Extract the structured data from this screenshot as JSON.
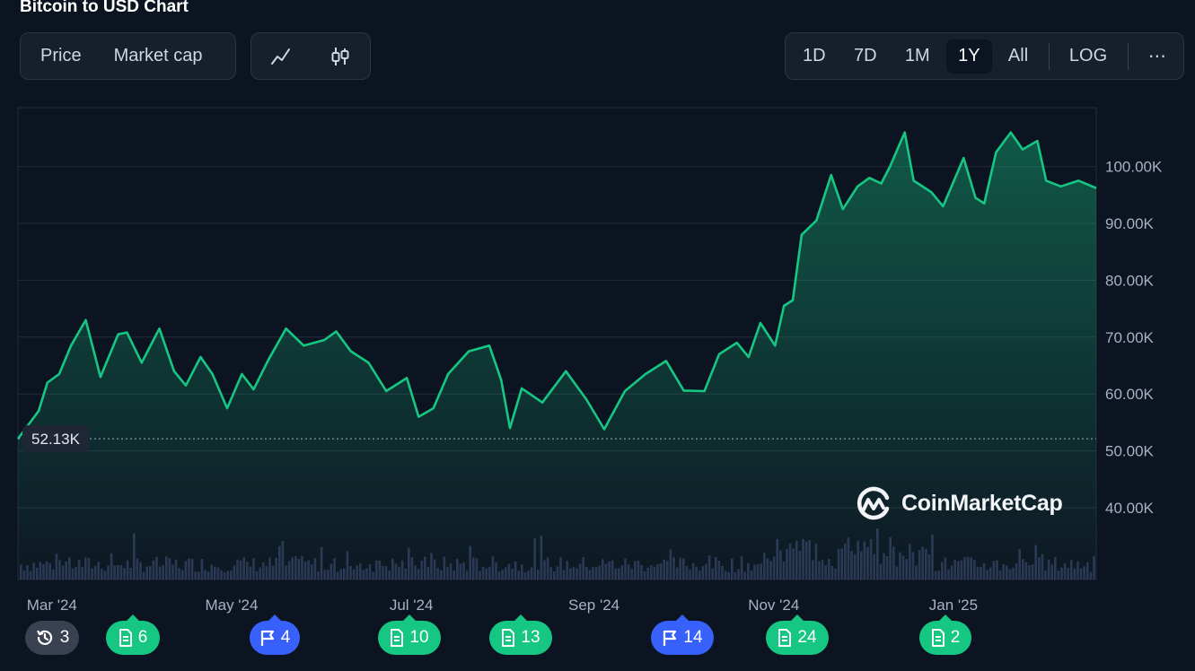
{
  "title": "Bitcoin to USD Chart",
  "metric_tabs": [
    "Price",
    "Market cap"
  ],
  "chart_type_icons": [
    "line-chart-icon",
    "candlestick-icon"
  ],
  "range_tabs": [
    "1D",
    "7D",
    "1M",
    "1Y",
    "All"
  ],
  "active_range": "1Y",
  "scale_button": "LOG",
  "more_button": "⋯",
  "watermark": "CoinMarketCap",
  "current_price_label": "52.13K",
  "colors": {
    "line": "#16c784",
    "volume": "#2b3553",
    "grid": "#222a3a",
    "background": "#0d1421",
    "event_green": "#16c784",
    "event_blue": "#3861fb"
  },
  "events": [
    {
      "type": "history",
      "icon": "history-icon",
      "count": "3",
      "color": "gray"
    },
    {
      "type": "news",
      "icon": "document-icon",
      "count": "6",
      "color": "green"
    },
    {
      "type": "flag",
      "icon": "flag-icon",
      "count": "4",
      "color": "blue"
    },
    {
      "type": "news",
      "icon": "document-icon",
      "count": "10",
      "color": "green"
    },
    {
      "type": "news",
      "icon": "document-icon",
      "count": "13",
      "color": "green"
    },
    {
      "type": "flag",
      "icon": "flag-icon",
      "count": "14",
      "color": "blue"
    },
    {
      "type": "news",
      "icon": "document-icon",
      "count": "24",
      "color": "green"
    },
    {
      "type": "news",
      "icon": "document-icon",
      "count": "2",
      "color": "green"
    }
  ],
  "chart_data": {
    "type": "area",
    "title": "Bitcoin to USD Chart",
    "y_ticks": [
      "40.00K",
      "50.00K",
      "60.00K",
      "70.00K",
      "80.00K",
      "90.00K",
      "100.00K"
    ],
    "x_ticks": [
      "Mar '24",
      "May '24",
      "Jul '24",
      "Sep '24",
      "Nov '24",
      "Jan '25"
    ],
    "ylim": [
      32000,
      110000
    ],
    "xlim": [
      "2024-02-20",
      "2025-02-20"
    ],
    "reference_line": 52130,
    "grid": true,
    "series": [
      {
        "values": [
          [
            "2024-02-20",
            52130
          ],
          [
            "2024-02-27",
            57000
          ],
          [
            "2024-03-01",
            62000
          ],
          [
            "2024-03-05",
            63500
          ],
          [
            "2024-03-09",
            68500
          ],
          [
            "2024-03-14",
            73000
          ],
          [
            "2024-03-19",
            63000
          ],
          [
            "2024-03-25",
            70500
          ],
          [
            "2024-03-28",
            70800
          ],
          [
            "2024-04-02",
            65500
          ],
          [
            "2024-04-08",
            71500
          ],
          [
            "2024-04-13",
            64000
          ],
          [
            "2024-04-17",
            61500
          ],
          [
            "2024-04-22",
            66500
          ],
          [
            "2024-04-26",
            63500
          ],
          [
            "2024-05-01",
            57500
          ],
          [
            "2024-05-06",
            63500
          ],
          [
            "2024-05-10",
            60800
          ],
          [
            "2024-05-15",
            66000
          ],
          [
            "2024-05-21",
            71500
          ],
          [
            "2024-05-27",
            68500
          ],
          [
            "2024-06-03",
            69500
          ],
          [
            "2024-06-07",
            71000
          ],
          [
            "2024-06-12",
            67500
          ],
          [
            "2024-06-18",
            65500
          ],
          [
            "2024-06-24",
            60500
          ],
          [
            "2024-07-01",
            62800
          ],
          [
            "2024-07-05",
            56000
          ],
          [
            "2024-07-10",
            57500
          ],
          [
            "2024-07-15",
            63500
          ],
          [
            "2024-07-22",
            67500
          ],
          [
            "2024-07-29",
            68500
          ],
          [
            "2024-08-02",
            62500
          ],
          [
            "2024-08-05",
            54000
          ],
          [
            "2024-08-09",
            61000
          ],
          [
            "2024-08-16",
            58500
          ],
          [
            "2024-08-24",
            64000
          ],
          [
            "2024-08-31",
            59000
          ],
          [
            "2024-09-06",
            53800
          ],
          [
            "2024-09-13",
            60500
          ],
          [
            "2024-09-20",
            63500
          ],
          [
            "2024-09-27",
            65800
          ],
          [
            "2024-10-03",
            60600
          ],
          [
            "2024-10-10",
            60500
          ],
          [
            "2024-10-15",
            67000
          ],
          [
            "2024-10-21",
            69000
          ],
          [
            "2024-10-25",
            66500
          ],
          [
            "2024-10-29",
            72500
          ],
          [
            "2024-11-03",
            68500
          ],
          [
            "2024-11-06",
            75500
          ],
          [
            "2024-11-09",
            76500
          ],
          [
            "2024-11-12",
            88000
          ],
          [
            "2024-11-17",
            90500
          ],
          [
            "2024-11-22",
            98500
          ],
          [
            "2024-11-26",
            92500
          ],
          [
            "2024-12-01",
            96500
          ],
          [
            "2024-12-05",
            98000
          ],
          [
            "2024-12-09",
            97000
          ],
          [
            "2024-12-12",
            100000
          ],
          [
            "2024-12-17",
            106000
          ],
          [
            "2024-12-20",
            97500
          ],
          [
            "2024-12-26",
            95500
          ],
          [
            "2024-12-30",
            93000
          ],
          [
            "2025-01-06",
            101500
          ],
          [
            "2025-01-10",
            94500
          ],
          [
            "2025-01-13",
            93500
          ],
          [
            "2025-01-17",
            102500
          ],
          [
            "2025-01-22",
            106000
          ],
          [
            "2025-01-26",
            103000
          ],
          [
            "2025-01-31",
            104500
          ],
          [
            "2025-02-03",
            97500
          ],
          [
            "2025-02-08",
            96500
          ],
          [
            "2025-02-14",
            97500
          ],
          [
            "2025-02-20",
            96200
          ]
        ]
      }
    ]
  }
}
